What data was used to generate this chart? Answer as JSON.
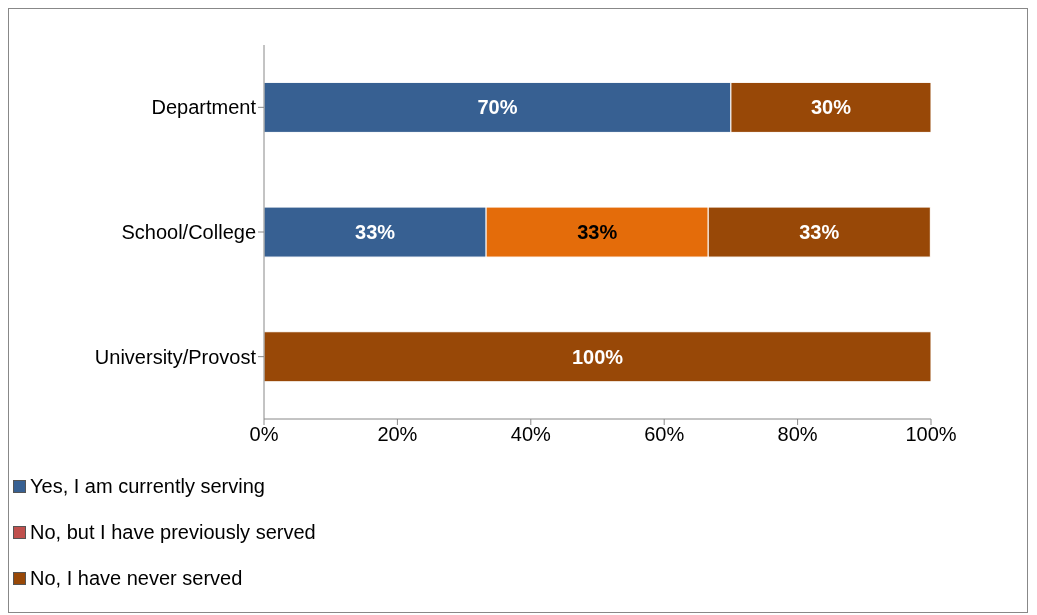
{
  "chart_data": {
    "type": "bar",
    "orientation": "horizontal",
    "stacked": true,
    "categories": [
      "Department",
      "School/College",
      "University/Provost"
    ],
    "series": [
      {
        "name": "Yes, I am currently serving",
        "color": "#376092",
        "values": [
          70,
          33.3,
          0
        ],
        "value_labels": [
          "70%",
          "33%",
          null
        ]
      },
      {
        "name": "No, but I have previously served",
        "color": "#c0504d",
        "values": [
          0,
          0,
          0
        ],
        "value_labels": [
          null,
          null,
          null
        ]
      },
      {
        "color": "#e46c0a",
        "values": [
          0,
          33.3,
          0
        ],
        "value_labels": [
          null,
          "33%",
          null
        ]
      },
      {
        "name": "No, I have never served",
        "color": "#984807",
        "values": [
          30,
          33.3,
          100
        ],
        "value_labels": [
          "30%",
          "33%",
          "100%"
        ]
      }
    ],
    "xlim": [
      0,
      100
    ],
    "xticks": [
      {
        "value": 0,
        "label": "0%"
      },
      {
        "value": 20,
        "label": "20%"
      },
      {
        "value": 40,
        "label": "40%"
      },
      {
        "value": 60,
        "label": "60%"
      },
      {
        "value": 80,
        "label": "80%"
      },
      {
        "value": 100,
        "label": "100%"
      }
    ],
    "legend": "bottom left"
  }
}
